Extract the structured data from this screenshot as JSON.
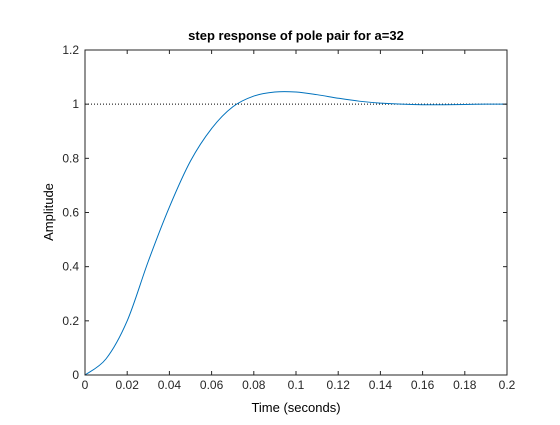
{
  "chart_data": {
    "type": "line",
    "title": "step response of  pole pair for a=32",
    "xlabel": "Time (seconds)",
    "ylabel": "Amplitude",
    "xlim": [
      0,
      0.2
    ],
    "ylim": [
      0,
      1.2
    ],
    "x_ticks": [
      "0",
      "0.02",
      "0.04",
      "0.06",
      "0.08",
      "0.1",
      "0.12",
      "0.14",
      "0.16",
      "0.18",
      "0.2"
    ],
    "y_ticks": [
      "0",
      "0.2",
      "0.4",
      "0.6",
      "0.8",
      "1",
      "1.2"
    ],
    "grid": false,
    "box": true,
    "reference_line": {
      "y": 1,
      "style": "dotted",
      "color": "#000000"
    },
    "series": [
      {
        "color": "#0072bd",
        "x": [
          0,
          0.01,
          0.02,
          0.03,
          0.04,
          0.05,
          0.06,
          0.07,
          0.08,
          0.09,
          0.1,
          0.11,
          0.12,
          0.13,
          0.14,
          0.15,
          0.16,
          0.17,
          0.18,
          0.19,
          0.2
        ],
        "y": [
          0,
          0.06,
          0.2,
          0.42,
          0.62,
          0.79,
          0.91,
          0.99,
          1.03,
          1.045,
          1.045,
          1.035,
          1.022,
          1.011,
          1.004,
          1.0,
          0.998,
          0.998,
          0.999,
          1.0,
          1.0
        ]
      }
    ]
  }
}
